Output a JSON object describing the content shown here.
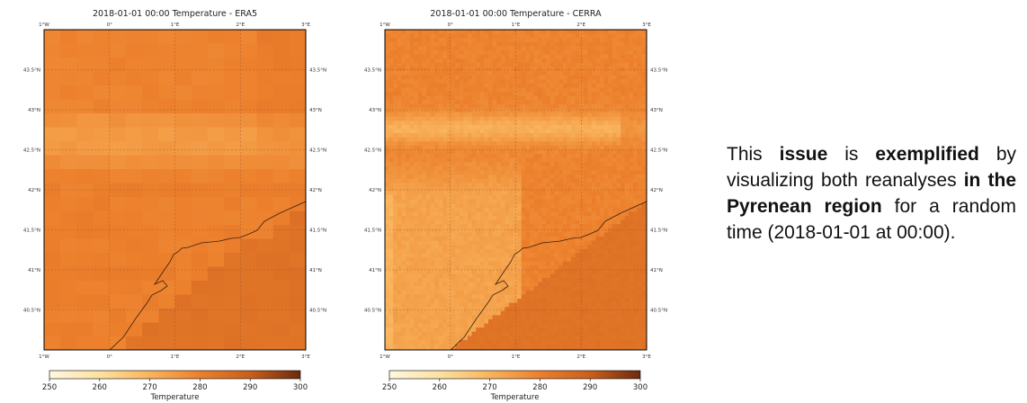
{
  "chart_data": [
    {
      "type": "heatmap",
      "title": "2018-01-01 00:00 Temperature - ERA5",
      "x_ticks": [
        "1°W",
        "0°",
        "1°E",
        "2°E",
        "3°E"
      ],
      "x_tick_values": [
        -1,
        0,
        1,
        2,
        3
      ],
      "y_ticks": [
        "40.5°N",
        "41°N",
        "41.5°N",
        "42°N",
        "42.5°N",
        "43°N",
        "43.5°N"
      ],
      "y_tick_values": [
        40.5,
        41,
        41.5,
        42,
        42.5,
        43,
        43.5
      ],
      "xlim": [
        -1,
        3
      ],
      "ylim": [
        40,
        44
      ],
      "grid": true,
      "colorbar": {
        "label": "Temperature",
        "ticks": [
          250,
          260,
          270,
          280,
          290,
          300
        ],
        "range": [
          250,
          300
        ]
      },
      "resolution": "coarse"
    },
    {
      "type": "heatmap",
      "title": "2018-01-01 00:00 Temperature - CERRA",
      "x_ticks": [
        "1°W",
        "0°",
        "1°E",
        "2°E",
        "3°E"
      ],
      "x_tick_values": [
        -1,
        0,
        1,
        2,
        3
      ],
      "y_ticks": [
        "40.5°N",
        "41°N",
        "41.5°N",
        "42°N",
        "42.5°N",
        "43°N",
        "43.5°N"
      ],
      "y_tick_values": [
        40.5,
        41,
        41.5,
        42,
        42.5,
        43,
        43.5
      ],
      "xlim": [
        -1,
        3
      ],
      "ylim": [
        40,
        44
      ],
      "grid": true,
      "colorbar": {
        "label": "Temperature",
        "ticks": [
          250,
          260,
          270,
          280,
          290,
          300
        ],
        "range": [
          250,
          300
        ]
      },
      "resolution": "fine"
    }
  ],
  "text": {
    "p1": "This ",
    "b1": "issue",
    "p2": " is ",
    "b2": "exemplified",
    "p3": " by visualizing both reanalyses ",
    "b3": "in the Pyrenean region",
    "p4": " for a random time (2018-01-01 at 00:00)."
  }
}
